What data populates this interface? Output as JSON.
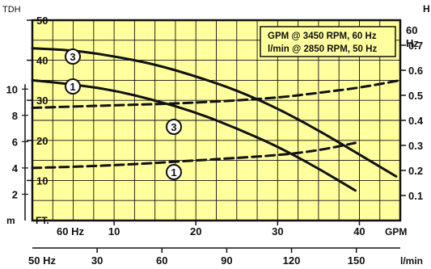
{
  "chart_data": {
    "type": "line",
    "legend_box": {
      "line1": "GPM @ 3450 RPM, 60 Hz",
      "line2": "l/min @ 2850 RPM, 50 Hz",
      "placement": "top-right"
    },
    "colors": {
      "background": "#ffff9e",
      "grid": "#111111",
      "curves": "#111111"
    },
    "grid": true,
    "x_axis": {
      "unit": "GPM",
      "hz_label": "60 Hz",
      "range": [
        0,
        45
      ],
      "ticks": [
        "10",
        "20",
        "30",
        "40"
      ],
      "secondary": {
        "unit": "l/min",
        "hz_label": "50 Hz",
        "ticks": [
          "30",
          "60",
          "90",
          "120",
          "150"
        ]
      }
    },
    "y_axis": {
      "unit": "FT.",
      "title": "TDH",
      "range": [
        0,
        50
      ],
      "ticks": [
        "10",
        "20",
        "30",
        "40",
        "50"
      ],
      "meters": {
        "unit": "m",
        "ticks": [
          "2",
          "4",
          "6",
          "8",
          "10"
        ]
      }
    },
    "right_axis": {
      "top_value": "60",
      "unit": "Hz",
      "title": "H",
      "range": [
        0,
        0.8
      ],
      "ticks": [
        "0.1",
        "0.2",
        "0.3",
        "0.4",
        "0.5",
        "0.6",
        "0.7"
      ]
    },
    "series": [
      {
        "name": "3",
        "role": "head",
        "style": "solid",
        "axis": "left",
        "x": [
          0,
          5,
          10,
          15,
          20,
          25,
          30,
          35,
          40,
          44.5
        ],
        "y": [
          43,
          42.5,
          41,
          39,
          36,
          32.5,
          28,
          22.5,
          16.5,
          11
        ]
      },
      {
        "name": "1",
        "role": "head",
        "style": "solid",
        "axis": "left",
        "x": [
          0,
          5,
          10,
          15,
          20,
          25,
          30,
          35,
          39.5
        ],
        "y": [
          35,
          34,
          32.5,
          30,
          27,
          23,
          18.5,
          13,
          7.5
        ]
      },
      {
        "name": "3",
        "role": "power",
        "style": "dashed",
        "axis": "right",
        "x": [
          0,
          10,
          20,
          30,
          35,
          40,
          45
        ],
        "y": [
          0.45,
          0.46,
          0.47,
          0.49,
          0.51,
          0.53,
          0.56
        ]
      },
      {
        "name": "1",
        "role": "power",
        "style": "dashed",
        "axis": "right",
        "x": [
          0,
          10,
          20,
          30,
          35,
          39.5
        ],
        "y": [
          0.21,
          0.22,
          0.24,
          0.26,
          0.28,
          0.31
        ]
      }
    ]
  }
}
